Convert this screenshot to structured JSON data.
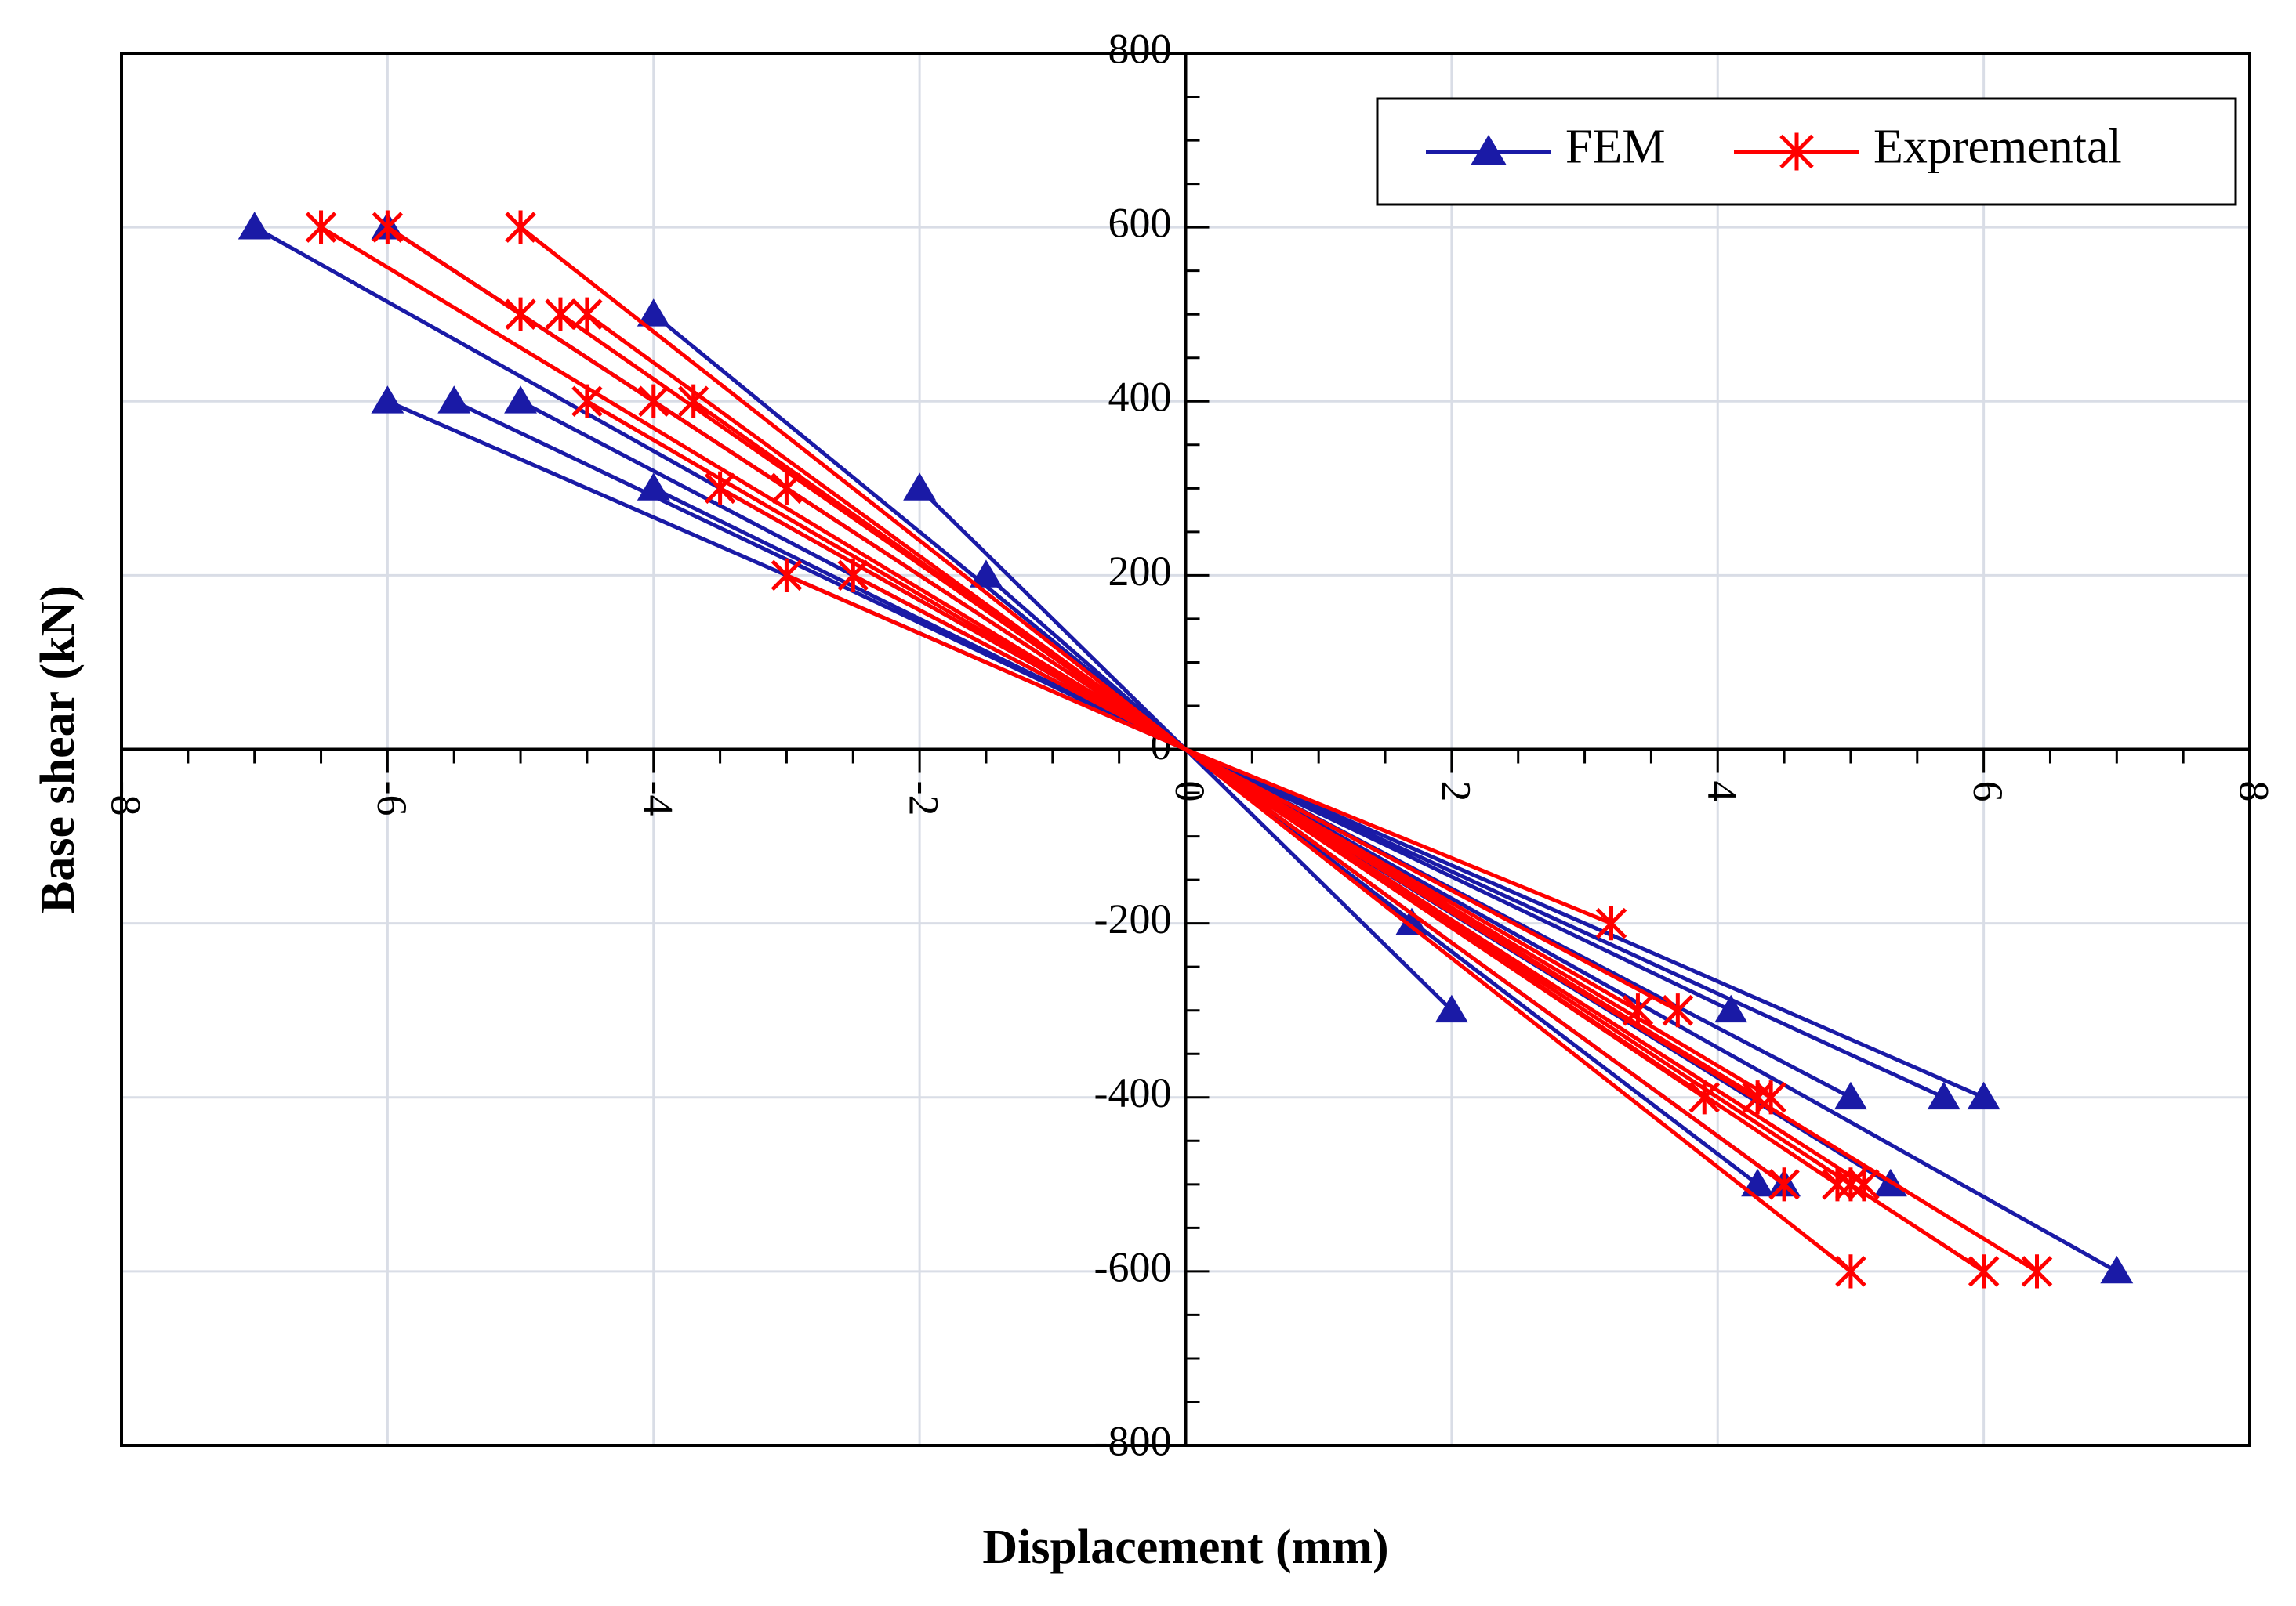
{
  "chart_data": {
    "type": "line",
    "title": "",
    "xlabel": "Displacement (mm)",
    "ylabel": "Base shear (kN)",
    "xlim": [
      -8,
      8
    ],
    "ylim": [
      -800,
      800
    ],
    "xticks": [
      -8,
      -6,
      -4,
      -2,
      0,
      2,
      4,
      6,
      8
    ],
    "yticks": [
      -800,
      -600,
      -400,
      -200,
      0,
      200,
      400,
      600,
      800
    ],
    "xtick_labels": [
      "-8",
      "-6",
      "-4",
      "-2",
      "0",
      "2",
      "4",
      "6",
      "8"
    ],
    "ytick_labels": [
      "-800",
      "-600",
      "-400",
      "-200",
      "0",
      "200",
      "400",
      "600",
      "800"
    ],
    "grid": true,
    "legend_position": "top-right",
    "series": [
      {
        "name": "FEM",
        "color": "#1a1aa6",
        "marker": "triangle",
        "x": [
          0,
          2.0,
          0,
          -2.0,
          0,
          1.7,
          0,
          -1.5,
          0,
          4.1,
          0,
          -4.0,
          0,
          5.0,
          0,
          -5.0,
          0,
          5.7,
          0,
          -5.5,
          0,
          6.0,
          0,
          -6.0,
          0,
          4.3,
          0,
          -4.0,
          0,
          4.5,
          0,
          -6.0,
          0,
          5.3,
          0,
          -7.0,
          0,
          7.0,
          0
        ],
        "y": [
          0,
          -300,
          0,
          300,
          0,
          -200,
          0,
          200,
          0,
          -300,
          0,
          300,
          0,
          -400,
          0,
          400,
          0,
          -400,
          0,
          400,
          0,
          -400,
          0,
          400,
          0,
          -500,
          0,
          500,
          0,
          -500,
          0,
          600,
          0,
          -500,
          0,
          600,
          0,
          -600,
          0
        ]
      },
      {
        "name": "Expremental",
        "color": "#ff0000",
        "marker": "asterisk",
        "x": [
          0,
          3.2,
          0,
          -3.0,
          0,
          3.4,
          0,
          -3.5,
          0,
          3.7,
          0,
          -3.0,
          0,
          3.9,
          0,
          -2.5,
          0,
          4.3,
          0,
          -4.0,
          0,
          4.4,
          0,
          -4.5,
          0,
          4.5,
          0,
          -3.7,
          0,
          4.9,
          0,
          -5.0,
          0,
          5.0,
          0,
          -4.5,
          0,
          5.1,
          0,
          -4.7,
          0,
          5.0,
          0,
          -6.5,
          0,
          6.0,
          0,
          -6.0,
          0,
          6.4,
          0,
          -5.0,
          0
        ],
        "y": [
          0,
          -200,
          0,
          200,
          0,
          -300,
          0,
          300,
          0,
          -300,
          0,
          300,
          0,
          -400,
          0,
          200,
          0,
          -400,
          0,
          400,
          0,
          -400,
          0,
          400,
          0,
          -500,
          0,
          400,
          0,
          -500,
          0,
          500,
          0,
          -500,
          0,
          500,
          0,
          -500,
          0,
          500,
          0,
          -600,
          0,
          600,
          0,
          -600,
          0,
          600,
          0,
          -600,
          0,
          600,
          0
        ]
      }
    ]
  }
}
